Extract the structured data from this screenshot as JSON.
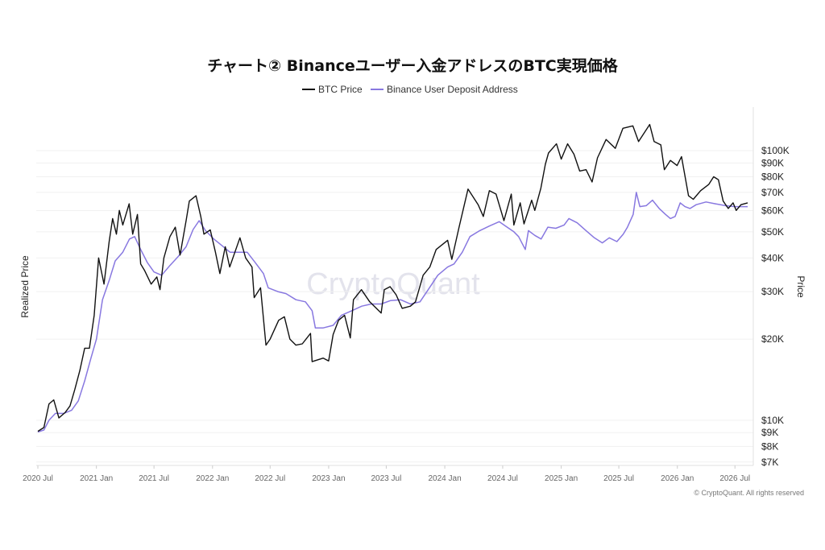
{
  "chart_data": {
    "type": "line",
    "title": "チャート② Binanceユーザー入金アドレスのBTC実現価格",
    "ylabel_left": "Realized Price",
    "ylabel_right": "Price",
    "y_scale": "log",
    "ylim": [
      6800,
      145000
    ],
    "y_ticks": [
      {
        "value": 100000,
        "label": "$100K"
      },
      {
        "value": 90000,
        "label": "$90K"
      },
      {
        "value": 80000,
        "label": "$80K"
      },
      {
        "value": 70000,
        "label": "$70K"
      },
      {
        "value": 60000,
        "label": "$60K"
      },
      {
        "value": 50000,
        "label": "$50K"
      },
      {
        "value": 40000,
        "label": "$40K"
      },
      {
        "value": 30000,
        "label": "$30K"
      },
      {
        "value": 20000,
        "label": "$20K"
      },
      {
        "value": 10000,
        "label": "$10K"
      },
      {
        "value": 9000,
        "label": "$9K"
      },
      {
        "value": 8000,
        "label": "$8K"
      },
      {
        "value": 7000,
        "label": "$7K"
      }
    ],
    "xlim": [
      "2020-07-01",
      "2026-08-15"
    ],
    "x_ticks": [
      {
        "date": "2020-07-01",
        "label": "2020 Jul"
      },
      {
        "date": "2021-01-01",
        "label": "2021 Jan"
      },
      {
        "date": "2021-07-01",
        "label": "2021 Jul"
      },
      {
        "date": "2022-01-01",
        "label": "2022 Jan"
      },
      {
        "date": "2022-07-01",
        "label": "2022 Jul"
      },
      {
        "date": "2023-01-01",
        "label": "2023 Jan"
      },
      {
        "date": "2023-07-01",
        "label": "2023 Jul"
      },
      {
        "date": "2024-01-01",
        "label": "2024 Jan"
      },
      {
        "date": "2024-07-01",
        "label": "2024 Jul"
      },
      {
        "date": "2025-01-01",
        "label": "2025 Jan"
      },
      {
        "date": "2025-07-01",
        "label": "2025 Jul"
      },
      {
        "date": "2026-01-01",
        "label": "2026 Jan"
      },
      {
        "date": "2026-07-01",
        "label": "2026 Jul"
      }
    ],
    "grid": true,
    "legend_position": "top-center",
    "series": [
      {
        "name": "BTC Price",
        "color": "#111111",
        "points": [
          [
            "2020-07-01",
            9100
          ],
          [
            "2020-07-20",
            9400
          ],
          [
            "2020-08-05",
            11500
          ],
          [
            "2020-08-20",
            11900
          ],
          [
            "2020-09-05",
            10200
          ],
          [
            "2020-09-25",
            10700
          ],
          [
            "2020-10-10",
            11300
          ],
          [
            "2020-10-25",
            13000
          ],
          [
            "2020-11-10",
            15300
          ],
          [
            "2020-11-25",
            18500
          ],
          [
            "2020-12-10",
            18500
          ],
          [
            "2020-12-25",
            24500
          ],
          [
            "2021-01-08",
            40000
          ],
          [
            "2021-01-25",
            32000
          ],
          [
            "2021-02-10",
            46000
          ],
          [
            "2021-02-21",
            56000
          ],
          [
            "2021-03-05",
            49000
          ],
          [
            "2021-03-14",
            60000
          ],
          [
            "2021-03-25",
            53000
          ],
          [
            "2021-04-14",
            63500
          ],
          [
            "2021-04-25",
            49000
          ],
          [
            "2021-05-10",
            58000
          ],
          [
            "2021-05-20",
            38000
          ],
          [
            "2021-06-01",
            36000
          ],
          [
            "2021-06-22",
            32000
          ],
          [
            "2021-07-10",
            34000
          ],
          [
            "2021-07-20",
            30500
          ],
          [
            "2021-08-01",
            40000
          ],
          [
            "2021-08-20",
            48000
          ],
          [
            "2021-09-06",
            52000
          ],
          [
            "2021-09-21",
            41000
          ],
          [
            "2021-10-10",
            55000
          ],
          [
            "2021-10-20",
            65000
          ],
          [
            "2021-11-10",
            68000
          ],
          [
            "2021-11-25",
            57000
          ],
          [
            "2021-12-05",
            49000
          ],
          [
            "2021-12-25",
            50800
          ],
          [
            "2022-01-10",
            42000
          ],
          [
            "2022-01-24",
            35000
          ],
          [
            "2022-02-10",
            44000
          ],
          [
            "2022-02-24",
            37000
          ],
          [
            "2022-03-28",
            47500
          ],
          [
            "2022-04-15",
            40000
          ],
          [
            "2022-05-05",
            37000
          ],
          [
            "2022-05-12",
            28500
          ],
          [
            "2022-06-01",
            31000
          ],
          [
            "2022-06-18",
            19000
          ],
          [
            "2022-07-01",
            20000
          ],
          [
            "2022-07-28",
            23500
          ],
          [
            "2022-08-15",
            24200
          ],
          [
            "2022-09-01",
            20000
          ],
          [
            "2022-09-20",
            19000
          ],
          [
            "2022-10-10",
            19200
          ],
          [
            "2022-11-05",
            21000
          ],
          [
            "2022-11-10",
            16500
          ],
          [
            "2022-12-15",
            17000
          ],
          [
            "2023-01-01",
            16600
          ],
          [
            "2023-01-15",
            20800
          ],
          [
            "2023-02-01",
            23500
          ],
          [
            "2023-02-20",
            24500
          ],
          [
            "2023-03-10",
            20200
          ],
          [
            "2023-03-20",
            28000
          ],
          [
            "2023-04-14",
            30500
          ],
          [
            "2023-05-10",
            27500
          ],
          [
            "2023-06-15",
            25000
          ],
          [
            "2023-06-25",
            30500
          ],
          [
            "2023-07-13",
            31300
          ],
          [
            "2023-08-01",
            29200
          ],
          [
            "2023-08-20",
            26000
          ],
          [
            "2023-09-15",
            26500
          ],
          [
            "2023-10-01",
            27500
          ],
          [
            "2023-10-25",
            34500
          ],
          [
            "2023-11-15",
            37000
          ],
          [
            "2023-12-05",
            43000
          ],
          [
            "2024-01-10",
            46500
          ],
          [
            "2024-01-23",
            39500
          ],
          [
            "2024-02-15",
            52000
          ],
          [
            "2024-03-14",
            72000
          ],
          [
            "2024-04-15",
            63000
          ],
          [
            "2024-05-01",
            57000
          ],
          [
            "2024-05-20",
            71000
          ],
          [
            "2024-06-10",
            69000
          ],
          [
            "2024-07-05",
            55000
          ],
          [
            "2024-07-28",
            69000
          ],
          [
            "2024-08-05",
            53000
          ],
          [
            "2024-08-25",
            64000
          ],
          [
            "2024-09-06",
            53500
          ],
          [
            "2024-09-30",
            65500
          ],
          [
            "2024-10-10",
            60000
          ],
          [
            "2024-10-29",
            72500
          ],
          [
            "2024-11-12",
            89000
          ],
          [
            "2024-11-22",
            98000
          ],
          [
            "2024-12-17",
            106000
          ],
          [
            "2025-01-01",
            93000
          ],
          [
            "2025-01-21",
            106000
          ],
          [
            "2025-02-10",
            97000
          ],
          [
            "2025-02-28",
            84000
          ],
          [
            "2025-03-20",
            85000
          ],
          [
            "2025-04-08",
            76500
          ],
          [
            "2025-04-25",
            94000
          ],
          [
            "2025-05-22",
            110000
          ],
          [
            "2025-06-20",
            102000
          ],
          [
            "2025-07-14",
            121000
          ],
          [
            "2025-08-14",
            123500
          ],
          [
            "2025-09-01",
            108000
          ],
          [
            "2025-10-06",
            125000
          ],
          [
            "2025-10-20",
            108000
          ],
          [
            "2025-11-10",
            105000
          ],
          [
            "2025-11-21",
            85000
          ],
          [
            "2025-12-10",
            92000
          ],
          [
            "2025-12-31",
            88000
          ],
          [
            "2026-01-14",
            95000
          ],
          [
            "2026-02-05",
            68000
          ],
          [
            "2026-02-20",
            66000
          ],
          [
            "2026-03-15",
            71000
          ],
          [
            "2026-04-10",
            75000
          ],
          [
            "2026-04-25",
            80000
          ],
          [
            "2026-05-10",
            78000
          ],
          [
            "2026-05-25",
            65000
          ],
          [
            "2026-06-10",
            61000
          ],
          [
            "2026-06-25",
            64000
          ],
          [
            "2026-07-05",
            60000
          ],
          [
            "2026-07-20",
            63000
          ],
          [
            "2026-08-10",
            64000
          ]
        ]
      },
      {
        "name": "Binance User Deposit Address",
        "color": "#8878e0",
        "points": [
          [
            "2020-07-01",
            9050
          ],
          [
            "2020-07-20",
            9200
          ],
          [
            "2020-08-05",
            10000
          ],
          [
            "2020-08-25",
            10600
          ],
          [
            "2020-09-20",
            10600
          ],
          [
            "2020-10-15",
            10900
          ],
          [
            "2020-11-05",
            11800
          ],
          [
            "2020-11-25",
            14000
          ],
          [
            "2020-12-15",
            17000
          ],
          [
            "2021-01-01",
            20000
          ],
          [
            "2021-01-20",
            28000
          ],
          [
            "2021-02-10",
            33000
          ],
          [
            "2021-03-01",
            39000
          ],
          [
            "2021-03-25",
            42000
          ],
          [
            "2021-04-15",
            47000
          ],
          [
            "2021-05-01",
            48000
          ],
          [
            "2021-05-20",
            43000
          ],
          [
            "2021-06-10",
            38500
          ],
          [
            "2021-07-01",
            35500
          ],
          [
            "2021-07-25",
            34500
          ],
          [
            "2021-08-20",
            37500
          ],
          [
            "2021-09-15",
            40500
          ],
          [
            "2021-10-10",
            44000
          ],
          [
            "2021-11-01",
            51000
          ],
          [
            "2021-11-20",
            55000
          ],
          [
            "2021-12-10",
            50500
          ],
          [
            "2022-01-05",
            47000
          ],
          [
            "2022-01-30",
            44500
          ],
          [
            "2022-02-25",
            42000
          ],
          [
            "2022-03-25",
            42000
          ],
          [
            "2022-04-20",
            42000
          ],
          [
            "2022-05-15",
            38500
          ],
          [
            "2022-06-10",
            35000
          ],
          [
            "2022-06-25",
            31000
          ],
          [
            "2022-07-25",
            30000
          ],
          [
            "2022-08-20",
            29500
          ],
          [
            "2022-09-20",
            28000
          ],
          [
            "2022-10-20",
            27500
          ],
          [
            "2022-11-10",
            25500
          ],
          [
            "2022-11-20",
            22000
          ],
          [
            "2022-12-15",
            22000
          ],
          [
            "2023-01-15",
            22500
          ],
          [
            "2023-02-10",
            24500
          ],
          [
            "2023-03-15",
            25500
          ],
          [
            "2023-04-15",
            26500
          ],
          [
            "2023-05-15",
            27000
          ],
          [
            "2023-06-15",
            27000
          ],
          [
            "2023-07-15",
            27800
          ],
          [
            "2023-08-15",
            28000
          ],
          [
            "2023-09-15",
            27000
          ],
          [
            "2023-10-15",
            27500
          ],
          [
            "2023-11-10",
            30500
          ],
          [
            "2023-12-10",
            34500
          ],
          [
            "2024-01-10",
            37000
          ],
          [
            "2024-01-30",
            38000
          ],
          [
            "2024-02-25",
            42000
          ],
          [
            "2024-03-20",
            48000
          ],
          [
            "2024-04-20",
            50500
          ],
          [
            "2024-05-20",
            52500
          ],
          [
            "2024-06-20",
            54500
          ],
          [
            "2024-07-10",
            52500
          ],
          [
            "2024-08-05",
            50000
          ],
          [
            "2024-08-20",
            48000
          ],
          [
            "2024-09-10",
            43000
          ],
          [
            "2024-09-20",
            50500
          ],
          [
            "2024-10-10",
            48500
          ],
          [
            "2024-10-30",
            47000
          ],
          [
            "2024-11-20",
            52000
          ],
          [
            "2024-12-15",
            51500
          ],
          [
            "2025-01-10",
            53000
          ],
          [
            "2025-01-25",
            56000
          ],
          [
            "2025-02-20",
            54000
          ],
          [
            "2025-03-20",
            50500
          ],
          [
            "2025-04-15",
            47500
          ],
          [
            "2025-05-10",
            45500
          ],
          [
            "2025-06-01",
            47500
          ],
          [
            "2025-06-25",
            46000
          ],
          [
            "2025-07-15",
            49000
          ],
          [
            "2025-07-28",
            52000
          ],
          [
            "2025-08-15",
            58000
          ],
          [
            "2025-08-25",
            70000
          ],
          [
            "2025-09-05",
            62000
          ],
          [
            "2025-09-25",
            62500
          ],
          [
            "2025-10-15",
            65500
          ],
          [
            "2025-11-05",
            61000
          ],
          [
            "2025-11-25",
            58000
          ],
          [
            "2025-12-10",
            56000
          ],
          [
            "2025-12-25",
            57000
          ],
          [
            "2026-01-10",
            64000
          ],
          [
            "2026-01-25",
            62000
          ],
          [
            "2026-02-10",
            61000
          ],
          [
            "2026-03-01",
            63000
          ],
          [
            "2026-04-01",
            64500
          ],
          [
            "2026-05-01",
            63500
          ],
          [
            "2026-06-01",
            62500
          ],
          [
            "2026-07-01",
            62000
          ],
          [
            "2026-08-10",
            62000
          ]
        ]
      }
    ],
    "watermark": "CryptoQuant",
    "copyright": "© CryptoQuant. All rights reserved"
  }
}
